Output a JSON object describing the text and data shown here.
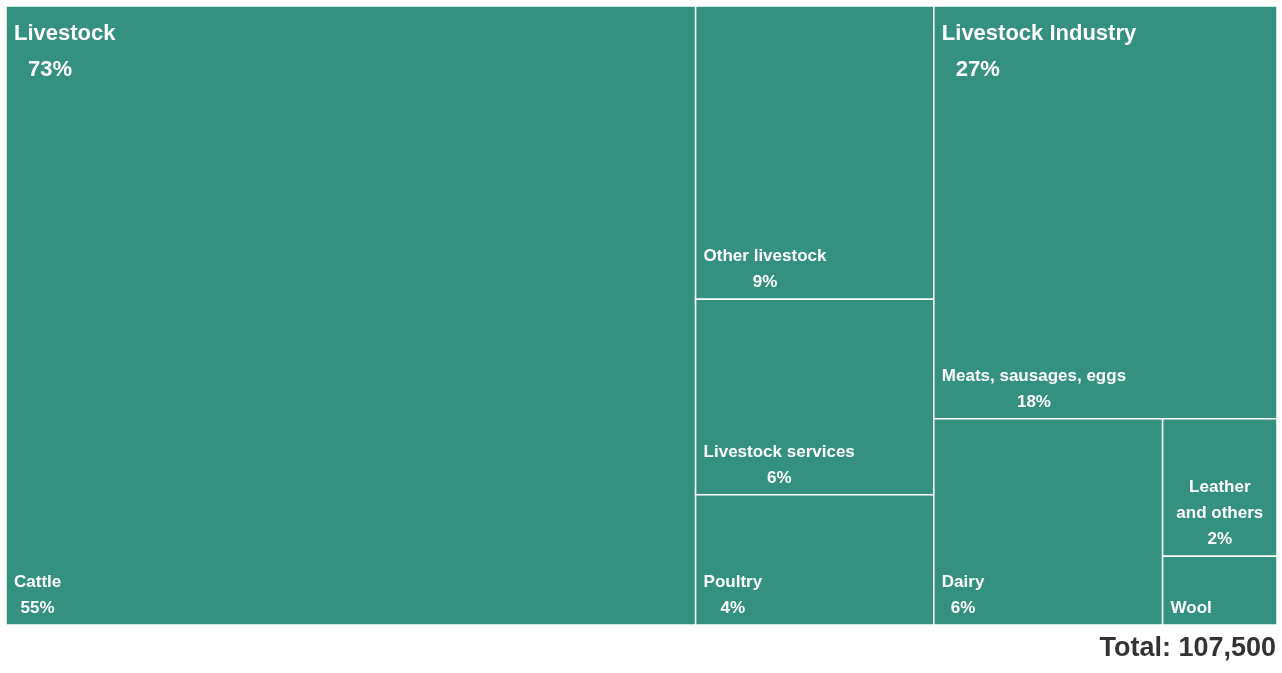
{
  "chart_data": {
    "type": "other",
    "categories": [
      "Cattle",
      "Other livestock",
      "Livestock services",
      "Poultry",
      "Meats, sausages, eggs",
      "Dairy",
      "Leather and others",
      "Wool"
    ],
    "series": [
      {
        "name": "Livestock",
        "color": "#349180",
        "values": [
          55,
          9,
          6,
          4,
          null,
          null,
          null,
          null
        ],
        "value_labels": [
          "55%",
          "9%",
          "6%",
          "4%",
          null,
          null,
          null,
          null
        ]
      },
      {
        "name": "Livestock Industry",
        "color": "#349180",
        "values": [
          null,
          null,
          null,
          null,
          18,
          6,
          2,
          null
        ],
        "value_labels": [
          null,
          null,
          null,
          null,
          "18%",
          "6%",
          "2%",
          null
        ]
      }
    ],
    "totals": [
      "73%",
      "27%"
    ],
    "annotations": [
      "Total: 107,500"
    ]
  }
}
